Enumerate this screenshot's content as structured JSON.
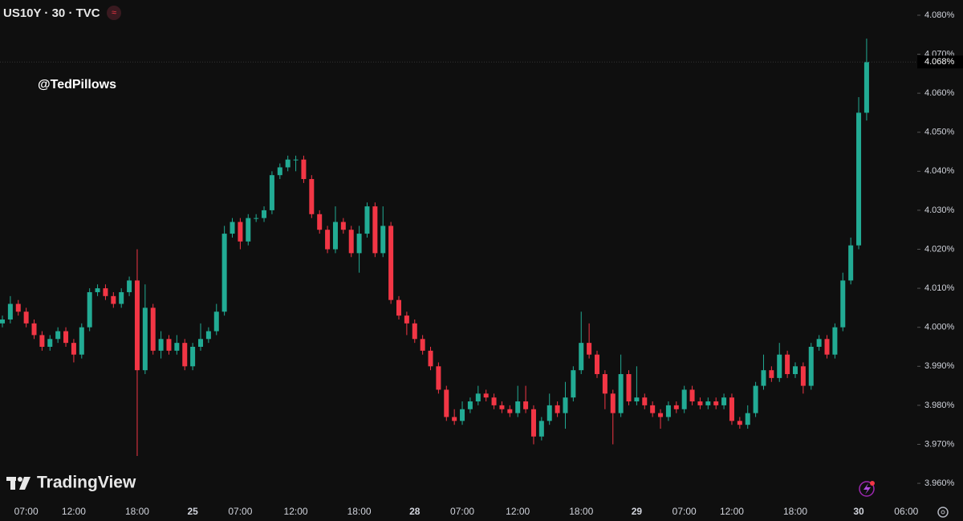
{
  "chart_data": {
    "type": "candlestick",
    "title": "US10Y · 30 · TVC",
    "annotation": "@TedPillows",
    "watermark": "TradingView",
    "up_color": "#22ab94",
    "down_color": "#f23645",
    "categories": [
      null,
      null,
      null,
      "07:00",
      null,
      null,
      null,
      null,
      null,
      "12:00",
      null,
      null,
      null,
      null,
      null,
      null,
      null,
      "18:00",
      null,
      null,
      null,
      null,
      null,
      null,
      "25",
      null,
      null,
      null,
      null,
      null,
      "07:00",
      null,
      null,
      null,
      null,
      null,
      null,
      "12:00",
      null,
      null,
      null,
      null,
      null,
      null,
      null,
      "18:00",
      null,
      null,
      null,
      null,
      null,
      null,
      "28",
      null,
      null,
      null,
      null,
      null,
      "07:00",
      null,
      null,
      null,
      null,
      null,
      null,
      "12:00",
      null,
      null,
      null,
      null,
      null,
      null,
      null,
      "18:00",
      null,
      null,
      null,
      null,
      null,
      null,
      "29",
      null,
      null,
      null,
      null,
      null,
      "07:00",
      null,
      null,
      null,
      null,
      null,
      "12:00",
      null,
      null,
      null,
      null,
      null,
      null,
      null,
      "18:00",
      null,
      null,
      null,
      null,
      null,
      null,
      null,
      "30",
      null,
      null,
      null,
      null,
      null,
      "06:00",
      null
    ],
    "open": [
      4.001,
      4.002,
      4.006,
      4.004,
      4.001,
      3.998,
      3.995,
      3.997,
      3.999,
      3.996,
      3.993,
      4.0,
      4.009,
      4.01,
      4.008,
      4.006,
      4.009,
      4.012,
      3.989,
      4.005,
      3.994,
      3.997,
      3.994,
      3.996,
      3.99,
      3.995,
      3.997,
      3.999,
      4.004,
      4.024,
      4.027,
      4.022,
      4.028,
      4.028,
      4.03,
      4.039,
      4.041,
      4.043,
      4.043,
      4.038,
      4.029,
      4.025,
      4.02,
      4.027,
      4.025,
      4.019,
      4.024,
      4.031,
      4.019,
      4.026,
      4.007,
      4.003,
      4.001,
      3.997,
      3.994,
      3.99,
      3.984,
      3.977,
      3.976,
      3.979,
      3.981,
      3.983,
      3.982,
      3.98,
      3.979,
      3.978,
      3.981,
      3.979,
      3.972,
      3.976,
      3.98,
      3.978,
      3.982,
      3.989,
      3.996,
      3.993,
      3.988,
      3.983,
      3.978,
      3.988,
      3.981,
      3.982,
      3.98,
      3.978,
      3.977,
      3.98,
      3.979,
      3.984,
      3.981,
      3.98,
      3.981,
      3.98,
      3.982,
      3.976,
      3.975,
      3.978,
      3.985,
      3.989,
      3.987,
      3.993,
      3.988,
      3.99,
      3.985,
      3.995,
      3.997,
      3.993,
      4.0,
      4.012,
      4.021,
      4.055,
      null,
      null,
      null,
      null,
      null,
      null
    ],
    "high": [
      4.003,
      4.008,
      4.007,
      4.005,
      4.002,
      3.999,
      3.998,
      4.0,
      4.0,
      3.997,
      4.001,
      4.01,
      4.011,
      4.011,
      4.009,
      4.01,
      4.013,
      4.02,
      4.011,
      4.006,
      3.999,
      3.998,
      3.998,
      3.997,
      3.996,
      4.001,
      4.0,
      4.006,
      4.026,
      4.028,
      4.028,
      4.029,
      4.029,
      4.031,
      4.04,
      4.042,
      4.044,
      4.044,
      4.044,
      4.039,
      4.03,
      4.026,
      4.031,
      4.028,
      4.026,
      4.026,
      4.032,
      4.032,
      4.031,
      4.027,
      4.008,
      4.004,
      4.002,
      3.998,
      3.995,
      3.991,
      3.985,
      3.979,
      3.981,
      3.982,
      3.985,
      3.984,
      3.983,
      3.981,
      3.98,
      3.985,
      3.985,
      3.98,
      3.977,
      3.983,
      3.981,
      3.986,
      3.99,
      4.004,
      4.001,
      3.994,
      3.989,
      3.984,
      3.993,
      3.989,
      3.99,
      3.983,
      3.981,
      3.979,
      3.981,
      3.981,
      3.985,
      3.985,
      3.982,
      3.982,
      3.982,
      3.983,
      3.983,
      3.977,
      3.98,
      3.986,
      3.993,
      3.99,
      3.996,
      3.994,
      3.991,
      3.991,
      3.996,
      3.998,
      3.998,
      4.001,
      4.014,
      4.023,
      4.059,
      4.074,
      null,
      null,
      null,
      null,
      null,
      null
    ],
    "low": [
      4.0,
      4.001,
      4.003,
      4.0,
      3.997,
      3.994,
      3.994,
      3.996,
      3.995,
      3.991,
      3.992,
      3.999,
      4.008,
      4.007,
      4.005,
      4.005,
      4.008,
      3.967,
      3.988,
      3.993,
      3.992,
      3.993,
      3.993,
      3.989,
      3.989,
      3.994,
      3.996,
      3.998,
      4.003,
      4.023,
      4.02,
      4.021,
      4.027,
      4.027,
      4.029,
      4.038,
      4.04,
      4.04,
      4.037,
      4.028,
      4.024,
      4.019,
      4.019,
      4.024,
      4.018,
      4.014,
      4.023,
      4.018,
      4.018,
      4.006,
      4.002,
      3.998,
      3.996,
      3.993,
      3.989,
      3.983,
      3.976,
      3.975,
      3.975,
      3.978,
      3.98,
      3.981,
      3.979,
      3.978,
      3.977,
      3.977,
      3.978,
      3.97,
      3.971,
      3.975,
      3.977,
      3.974,
      3.981,
      3.988,
      3.992,
      3.987,
      3.979,
      3.97,
      3.977,
      3.98,
      3.98,
      3.979,
      3.977,
      3.974,
      3.976,
      3.978,
      3.978,
      3.98,
      3.979,
      3.979,
      3.979,
      3.979,
      3.975,
      3.974,
      3.974,
      3.977,
      3.984,
      3.986,
      3.986,
      3.987,
      3.987,
      3.983,
      3.984,
      3.994,
      3.992,
      3.992,
      3.999,
      4.011,
      4.02,
      4.053,
      null,
      null,
      null,
      null,
      null,
      null
    ],
    "close": [
      4.002,
      4.006,
      4.004,
      4.001,
      3.998,
      3.995,
      3.997,
      3.999,
      3.996,
      3.993,
      4.0,
      4.009,
      4.01,
      4.008,
      4.006,
      4.009,
      4.012,
      3.989,
      4.005,
      3.994,
      3.997,
      3.994,
      3.996,
      3.99,
      3.995,
      3.997,
      3.999,
      4.004,
      4.024,
      4.027,
      4.022,
      4.028,
      4.028,
      4.03,
      4.039,
      4.041,
      4.043,
      4.043,
      4.038,
      4.029,
      4.025,
      4.02,
      4.027,
      4.025,
      4.019,
      4.024,
      4.031,
      4.019,
      4.026,
      4.007,
      4.003,
      4.001,
      3.997,
      3.994,
      3.99,
      3.984,
      3.977,
      3.976,
      3.979,
      3.981,
      3.983,
      3.982,
      3.98,
      3.979,
      3.978,
      3.981,
      3.979,
      3.972,
      3.976,
      3.98,
      3.978,
      3.982,
      3.989,
      3.996,
      3.993,
      3.988,
      3.983,
      3.978,
      3.988,
      3.981,
      3.982,
      3.98,
      3.978,
      3.977,
      3.98,
      3.979,
      3.984,
      3.981,
      3.98,
      3.981,
      3.98,
      3.982,
      3.976,
      3.975,
      3.978,
      3.985,
      3.989,
      3.987,
      3.993,
      3.988,
      3.99,
      3.985,
      3.995,
      3.997,
      3.993,
      4.0,
      4.012,
      4.021,
      4.055,
      4.068,
      null,
      null,
      null,
      null,
      null,
      null
    ],
    "ylim": [
      3.9559,
      4.0839
    ],
    "yticks": [
      {
        "value": 3.96,
        "label": "3.960%"
      },
      {
        "value": 3.97,
        "label": "3.970%"
      },
      {
        "value": 3.98,
        "label": "3.980%"
      },
      {
        "value": 3.99,
        "label": "3.990%"
      },
      {
        "value": 4.0,
        "label": "4.000%"
      },
      {
        "value": 4.01,
        "label": "4.010%"
      },
      {
        "value": 4.02,
        "label": "4.020%"
      },
      {
        "value": 4.03,
        "label": "4.030%"
      },
      {
        "value": 4.04,
        "label": "4.040%"
      },
      {
        "value": 4.05,
        "label": "4.050%"
      },
      {
        "value": 4.06,
        "label": "4.060%"
      },
      {
        "value": 4.07,
        "label": "4.070%"
      },
      {
        "value": 4.08,
        "label": "4.080%"
      }
    ],
    "last_price": {
      "value": 4.068,
      "label": "4.068%"
    }
  }
}
